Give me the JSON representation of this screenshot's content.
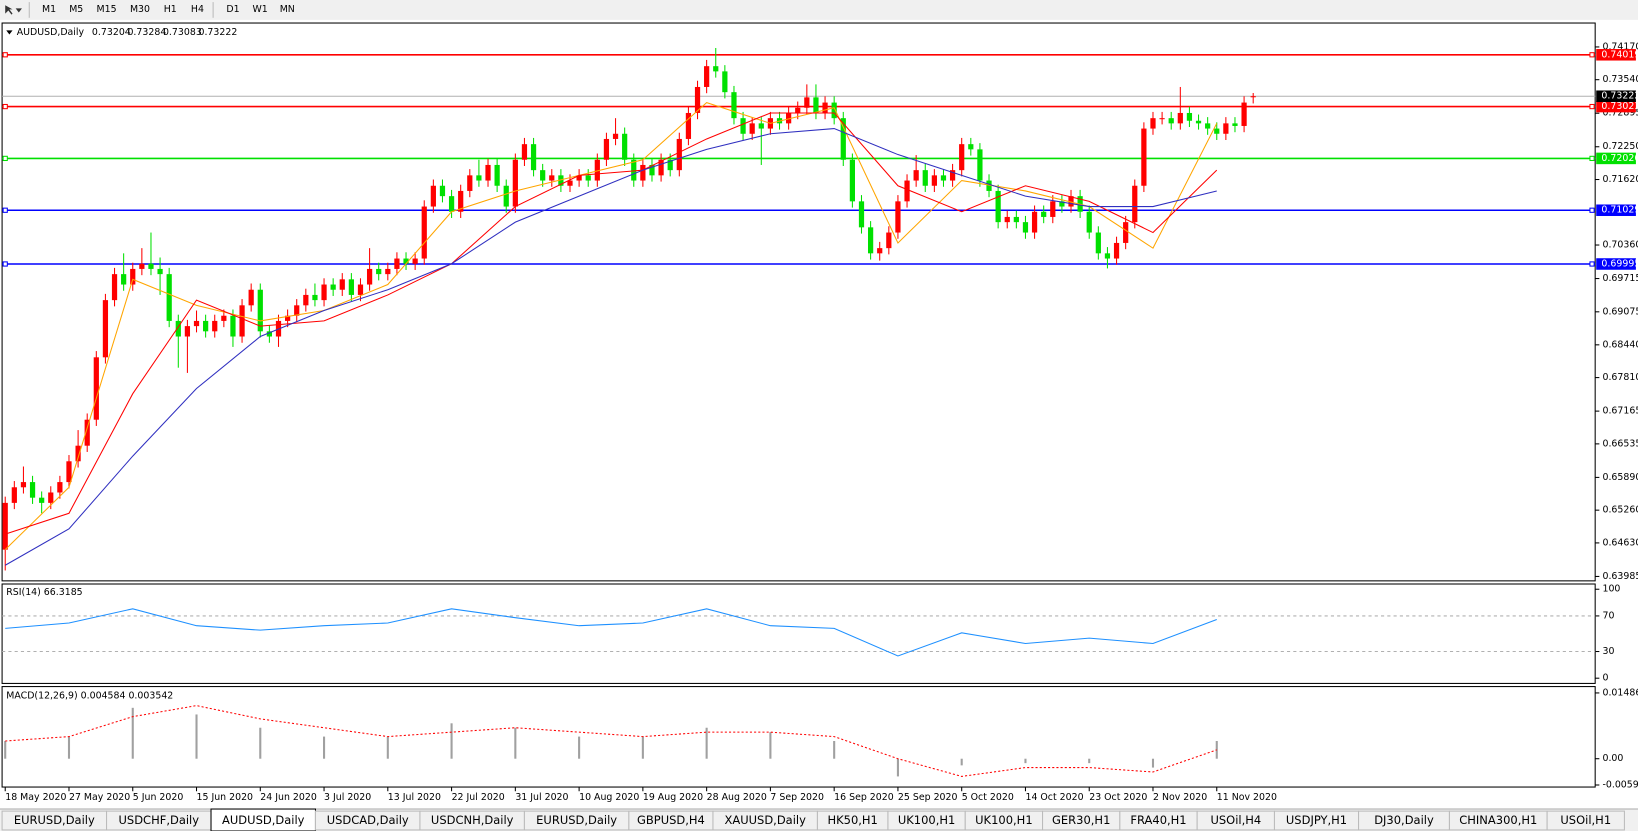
{
  "toolbar": {
    "timeframes": [
      "M1",
      "M5",
      "M15",
      "M30",
      "H1",
      "H4",
      "D1",
      "W1",
      "MN"
    ]
  },
  "tabs": [
    "EURUSD,Daily",
    "USDCHF,Daily",
    "AUDUSD,Daily",
    "USDCAD,Daily",
    "USDCNH,Daily",
    "EURUSD,Daily",
    "GBPUSD,H4",
    "XAUUSD,Daily",
    "HK50,H1",
    "UK100,H1",
    "UK100,H1",
    "GER30,H1",
    "FRA40,H1",
    "USOil,H4",
    "USDJPY,H1",
    "DJ30,Daily",
    "CHINA300,H1",
    "USOil,H1"
  ],
  "active_tab": 2,
  "chart_data": [
    {
      "type": "candlestick",
      "symbol": "AUDUSD,Daily",
      "categories": [
        "18 May 2020",
        null,
        null,
        null,
        null,
        null,
        null,
        "27 May 2020",
        null,
        null,
        null,
        null,
        null,
        null,
        "5 Jun 2020",
        null,
        null,
        null,
        null,
        null,
        null,
        "15 Jun 2020",
        null,
        null,
        null,
        null,
        null,
        null,
        "24 Jun 2020",
        null,
        null,
        null,
        null,
        null,
        null,
        "3 Jul 2020",
        null,
        null,
        null,
        null,
        null,
        null,
        "13 Jul 2020",
        null,
        null,
        null,
        null,
        null,
        null,
        "22 Jul 2020",
        null,
        null,
        null,
        null,
        null,
        null,
        "31 Jul 2020",
        null,
        null,
        null,
        null,
        null,
        null,
        "10 Aug 2020",
        null,
        null,
        null,
        null,
        null,
        null,
        "19 Aug 2020",
        null,
        null,
        null,
        null,
        null,
        null,
        "28 Aug 2020",
        null,
        null,
        null,
        null,
        null,
        null,
        "7 Sep 2020",
        null,
        null,
        null,
        null,
        null,
        null,
        "16 Sep 2020",
        null,
        null,
        null,
        null,
        null,
        null,
        "25 Sep 2020",
        null,
        null,
        null,
        null,
        null,
        null,
        "5 Oct 2020",
        null,
        null,
        null,
        null,
        null,
        null,
        "14 Oct 2020",
        null,
        null,
        null,
        null,
        null,
        null,
        "23 Oct 2020",
        null,
        null,
        null,
        null,
        null,
        null,
        "2 Nov 2020",
        null,
        null,
        null,
        null,
        null,
        null,
        "11 Nov 2020",
        null,
        null,
        null,
        null
      ],
      "open": [
        0.645,
        0.654,
        0.657,
        0.658,
        0.655,
        0.654,
        0.656,
        0.658,
        0.662,
        0.665,
        0.67,
        0.682,
        0.693,
        0.698,
        0.696,
        0.699,
        0.7,
        0.699,
        0.698,
        0.689,
        0.686,
        0.688,
        0.689,
        0.687,
        0.689,
        0.69,
        0.686,
        0.692,
        0.695,
        0.687,
        0.686,
        0.689,
        0.69,
        0.692,
        0.694,
        0.693,
        0.696,
        0.695,
        0.697,
        0.694,
        0.696,
        0.699,
        0.698,
        0.699,
        0.701,
        0.7,
        0.701,
        0.711,
        0.715,
        0.713,
        0.71,
        0.714,
        0.717,
        0.716,
        0.719,
        0.715,
        0.711,
        0.72,
        0.723,
        0.718,
        0.716,
        0.717,
        0.715,
        0.716,
        0.717,
        0.716,
        0.72,
        0.724,
        0.725,
        0.72,
        0.716,
        0.719,
        0.717,
        0.72,
        0.718,
        0.724,
        0.729,
        0.734,
        0.738,
        0.737,
        0.733,
        0.728,
        0.725,
        0.727,
        0.726,
        0.728,
        0.727,
        0.729,
        0.73,
        0.732,
        0.729,
        0.731,
        0.728,
        0.72,
        0.712,
        0.707,
        0.702,
        0.703,
        0.706,
        0.712,
        0.716,
        0.718,
        0.715,
        0.717,
        0.716,
        0.718,
        0.723,
        0.722,
        0.716,
        0.714,
        0.708,
        0.709,
        0.708,
        0.706,
        0.71,
        0.709,
        0.712,
        0.711,
        0.713,
        0.71,
        0.706,
        0.702,
        0.701,
        0.704,
        0.708,
        0.715,
        0.726,
        0.728,
        0.728,
        0.727,
        0.729,
        0.7275,
        0.727,
        0.726,
        0.725,
        0.727,
        0.7265,
        0.73204
      ],
      "high": [
        0.6552,
        0.6582,
        0.661,
        0.6592,
        0.6562,
        0.6572,
        0.6592,
        0.6632,
        0.668,
        0.6712,
        0.6832,
        0.6942,
        0.6992,
        0.702,
        0.7002,
        0.703,
        0.706,
        0.7012,
        0.6992,
        0.6902,
        0.6892,
        0.691,
        0.6902,
        0.6902,
        0.6912,
        0.6912,
        0.6932,
        0.6962,
        0.6962,
        0.6882,
        0.6902,
        0.6912,
        0.6932,
        0.6952,
        0.6962,
        0.6972,
        0.6972,
        0.6982,
        0.6982,
        0.6972,
        0.703,
        0.7002,
        0.7002,
        0.7022,
        0.7022,
        0.7022,
        0.7122,
        0.7162,
        0.7162,
        0.7142,
        0.7152,
        0.7182,
        0.72,
        0.7202,
        0.7202,
        0.7162,
        0.7212,
        0.7242,
        0.7242,
        0.7192,
        0.7182,
        0.7182,
        0.7172,
        0.7182,
        0.7182,
        0.7212,
        0.7252,
        0.728,
        0.7262,
        0.7212,
        0.7202,
        0.7202,
        0.7212,
        0.7212,
        0.7252,
        0.7302,
        0.7352,
        0.7392,
        0.7415,
        0.7382,
        0.7342,
        0.7292,
        0.7282,
        0.7282,
        0.7292,
        0.7292,
        0.7302,
        0.7312,
        0.7345,
        0.7345,
        0.7322,
        0.7322,
        0.7292,
        0.7212,
        0.7132,
        0.7082,
        0.7042,
        0.7072,
        0.7132,
        0.7172,
        0.7209,
        0.7192,
        0.7182,
        0.7182,
        0.7192,
        0.7242,
        0.7242,
        0.7232,
        0.7172,
        0.7152,
        0.7102,
        0.7102,
        0.7092,
        0.7112,
        0.7112,
        0.7132,
        0.7132,
        0.7142,
        0.7142,
        0.7112,
        0.7072,
        0.7032,
        0.7052,
        0.7092,
        0.7162,
        0.7272,
        0.7292,
        0.7292,
        0.7292,
        0.734,
        0.7302,
        0.7287,
        0.7282,
        0.7272,
        0.7282,
        0.7282,
        0.7322,
        0.73284
      ],
      "low": [
        0.641,
        0.6528,
        0.6558,
        0.6538,
        0.652,
        0.6528,
        0.6548,
        0.6568,
        0.6608,
        0.6638,
        0.6688,
        0.6808,
        0.6918,
        0.6948,
        0.6948,
        0.6978,
        0.6978,
        0.694,
        0.6878,
        0.68,
        0.679,
        0.6868,
        0.6858,
        0.6858,
        0.6878,
        0.684,
        0.6848,
        0.6908,
        0.6858,
        0.6848,
        0.684,
        0.6878,
        0.6888,
        0.6908,
        0.6918,
        0.6918,
        0.6938,
        0.6938,
        0.6928,
        0.6928,
        0.6948,
        0.6968,
        0.6968,
        0.6978,
        0.6988,
        0.6988,
        0.6998,
        0.7098,
        0.7118,
        0.7088,
        0.7088,
        0.7128,
        0.7148,
        0.7148,
        0.7138,
        0.7098,
        0.7098,
        0.7188,
        0.7168,
        0.7148,
        0.7148,
        0.7138,
        0.7138,
        0.7148,
        0.7148,
        0.7148,
        0.7188,
        0.7228,
        0.7188,
        0.7148,
        0.7148,
        0.7158,
        0.7158,
        0.7168,
        0.7168,
        0.7228,
        0.7278,
        0.7328,
        0.7358,
        0.7318,
        0.7268,
        0.7238,
        0.7238,
        0.719,
        0.7248,
        0.7258,
        0.7258,
        0.7278,
        0.7288,
        0.7278,
        0.7278,
        0.7268,
        0.7188,
        0.7108,
        0.7058,
        0.7008,
        0.7006,
        0.7018,
        0.7048,
        0.7108,
        0.7148,
        0.7138,
        0.7138,
        0.7148,
        0.7148,
        0.7168,
        0.7208,
        0.7148,
        0.7128,
        0.7068,
        0.7068,
        0.7068,
        0.7048,
        0.7048,
        0.7078,
        0.7078,
        0.7098,
        0.7098,
        0.7088,
        0.7048,
        0.7008,
        0.6991,
        0.6998,
        0.7028,
        0.7068,
        0.7138,
        0.7248,
        0.7268,
        0.7258,
        0.7258,
        0.7263,
        0.7258,
        0.7248,
        0.7238,
        0.7238,
        0.7253,
        0.7253,
        0.73083
      ],
      "close": [
        0.654,
        0.657,
        0.658,
        0.655,
        0.654,
        0.656,
        0.658,
        0.662,
        0.665,
        0.67,
        0.682,
        0.693,
        0.698,
        0.696,
        0.699,
        0.7,
        0.699,
        0.698,
        0.689,
        0.686,
        0.688,
        0.689,
        0.687,
        0.689,
        0.69,
        0.686,
        0.692,
        0.695,
        0.687,
        0.686,
        0.689,
        0.69,
        0.692,
        0.694,
        0.693,
        0.696,
        0.695,
        0.697,
        0.694,
        0.696,
        0.699,
        0.698,
        0.699,
        0.701,
        0.7,
        0.701,
        0.711,
        0.715,
        0.713,
        0.71,
        0.714,
        0.717,
        0.716,
        0.719,
        0.715,
        0.711,
        0.72,
        0.723,
        0.718,
        0.716,
        0.717,
        0.715,
        0.716,
        0.717,
        0.716,
        0.72,
        0.724,
        0.725,
        0.72,
        0.716,
        0.719,
        0.717,
        0.72,
        0.718,
        0.724,
        0.729,
        0.734,
        0.738,
        0.737,
        0.733,
        0.728,
        0.725,
        0.727,
        0.726,
        0.728,
        0.727,
        0.729,
        0.73,
        0.732,
        0.729,
        0.731,
        0.728,
        0.72,
        0.712,
        0.707,
        0.702,
        0.703,
        0.706,
        0.712,
        0.716,
        0.718,
        0.715,
        0.717,
        0.716,
        0.718,
        0.723,
        0.722,
        0.716,
        0.714,
        0.708,
        0.709,
        0.708,
        0.706,
        0.71,
        0.709,
        0.712,
        0.711,
        0.713,
        0.71,
        0.706,
        0.702,
        0.701,
        0.704,
        0.708,
        0.715,
        0.726,
        0.728,
        0.728,
        0.727,
        0.729,
        0.7275,
        0.727,
        0.726,
        0.725,
        0.727,
        0.7265,
        0.731,
        0.73222
      ],
      "up_color": "#ff0000",
      "down_color": "#00e000",
      "series": [
        {
          "color": "#ffa500",
          "x": [
            "18 May 2020",
            "27 May 2020",
            "5 Jun 2020",
            "15 Jun 2020",
            "24 Jun 2020",
            "3 Jul 2020",
            "13 Jul 2020",
            "22 Jul 2020",
            "31 Jul 2020",
            "10 Aug 2020",
            "19 Aug 2020",
            "28 Aug 2020",
            "7 Sep 2020",
            "16 Sep 2020",
            "25 Sep 2020",
            "5 Oct 2020",
            "14 Oct 2020",
            "23 Oct 2020",
            "2 Nov 2020",
            "11 Nov 2020"
          ],
          "values": [
            0.645,
            0.657,
            0.697,
            0.692,
            0.689,
            0.691,
            0.696,
            0.71,
            0.714,
            0.717,
            0.72,
            0.731,
            0.727,
            0.73,
            0.704,
            0.716,
            0.714,
            0.711,
            0.703,
            0.727
          ]
        },
        {
          "color": "#ff0000",
          "x": [
            "18 May 2020",
            "27 May 2020",
            "5 Jun 2020",
            "15 Jun 2020",
            "24 Jun 2020",
            "3 Jul 2020",
            "13 Jul 2020",
            "22 Jul 2020",
            "31 Jul 2020",
            "10 Aug 2020",
            "19 Aug 2020",
            "28 Aug 2020",
            "7 Sep 2020",
            "16 Sep 2020",
            "25 Sep 2020",
            "5 Oct 2020",
            "14 Oct 2020",
            "23 Oct 2020",
            "2 Nov 2020",
            "11 Nov 2020"
          ],
          "values": [
            0.648,
            0.652,
            0.675,
            0.693,
            0.688,
            0.689,
            0.694,
            0.7,
            0.711,
            0.717,
            0.718,
            0.724,
            0.729,
            0.729,
            0.715,
            0.71,
            0.715,
            0.712,
            0.706,
            0.718
          ]
        },
        {
          "color": "#3030c0",
          "x": [
            "18 May 2020",
            "27 May 2020",
            "5 Jun 2020",
            "15 Jun 2020",
            "24 Jun 2020",
            "3 Jul 2020",
            "13 Jul 2020",
            "22 Jul 2020",
            "31 Jul 2020",
            "10 Aug 2020",
            "19 Aug 2020",
            "28 Aug 2020",
            "7 Sep 2020",
            "16 Sep 2020",
            "25 Sep 2020",
            "5 Oct 2020",
            "14 Oct 2020",
            "23 Oct 2020",
            "2 Nov 2020",
            "11 Nov 2020"
          ],
          "values": [
            0.642,
            0.649,
            0.663,
            0.676,
            0.686,
            0.691,
            0.695,
            0.7,
            0.708,
            0.713,
            0.718,
            0.722,
            0.725,
            0.726,
            0.721,
            0.717,
            0.713,
            0.711,
            0.711,
            0.714
          ]
        }
      ],
      "levels": [
        {
          "value": 0.74019,
          "color": "#ff0000"
        },
        {
          "value": 0.73023,
          "color": "#ff0000"
        },
        {
          "value": 0.72026,
          "color": "#00e000"
        },
        {
          "value": 0.71029,
          "color": "#0000ff"
        },
        {
          "value": 0.69995,
          "color": "#0000ff"
        }
      ],
      "ylim": [
        0.639,
        0.7463
      ],
      "yticks": [
        {
          "value": 0.7417,
          "label": "0.74170"
        },
        {
          "value": 0.7354,
          "label": "0.73540"
        },
        0.72895,
        {
          "value": 0.7225,
          "label": "0.72250"
        },
        {
          "value": 0.7162,
          "label": "0.71620"
        },
        {
          "value": 0.7036,
          "label": "0.70360"
        },
        0.69715,
        0.69075,
        {
          "value": 0.6844,
          "label": "0.68440"
        },
        {
          "value": 0.6781,
          "label": "0.67810"
        },
        0.67165,
        0.66535,
        {
          "value": 0.6589,
          "label": "0.65890"
        },
        {
          "value": 0.6526,
          "label": "0.65260"
        },
        {
          "value": 0.6463,
          "label": "0.64630"
        },
        0.63985
      ]
    },
    {
      "type": "line",
      "title": "RSI(14) 66.3185",
      "color": "#1e90ff",
      "x": [
        "18 May 2020",
        "27 May 2020",
        "5 Jun 2020",
        "15 Jun 2020",
        "24 Jun 2020",
        "3 Jul 2020",
        "13 Jul 2020",
        "22 Jul 2020",
        "31 Jul 2020",
        "10 Aug 2020",
        "19 Aug 2020",
        "28 Aug 2020",
        "7 Sep 2020",
        "16 Sep 2020",
        "25 Sep 2020",
        "5 Oct 2020",
        "14 Oct 2020",
        "23 Oct 2020",
        "2 Nov 2020",
        "11 Nov 2020"
      ],
      "values": [
        56,
        62,
        78,
        59,
        54,
        59,
        62,
        78,
        68,
        59,
        62,
        78,
        59,
        56,
        25,
        51,
        39,
        45,
        39,
        66
      ],
      "ylim": [
        0,
        100
      ],
      "yticks": [
        0,
        30,
        70,
        100
      ]
    },
    {
      "type": "macd",
      "title": "MACD(12,26,9) 0.004584 0.003542",
      "histogram_color": "#a0a0a0",
      "signal_color": "#ff0000",
      "x": [
        "18 May 2020",
        "27 May 2020",
        "5 Jun 2020",
        "15 Jun 2020",
        "24 Jun 2020",
        "3 Jul 2020",
        "13 Jul 2020",
        "22 Jul 2020",
        "31 Jul 2020",
        "10 Aug 2020",
        "19 Aug 2020",
        "28 Aug 2020",
        "7 Sep 2020",
        "16 Sep 2020",
        "25 Sep 2020",
        "5 Oct 2020",
        "14 Oct 2020",
        "23 Oct 2020",
        "2 Nov 2020",
        "11 Nov 2020"
      ],
      "histogram": [
        0.004,
        0.005,
        0.0115,
        0.01,
        0.007,
        0.005,
        0.005,
        0.008,
        0.007,
        0.005,
        0.005,
        0.007,
        0.006,
        0.004,
        -0.004,
        -0.0015,
        -0.001,
        -0.001,
        -0.002,
        0.004
      ],
      "signal": [
        0.004,
        0.005,
        0.0095,
        0.012,
        0.009,
        0.007,
        0.005,
        0.006,
        0.007,
        0.006,
        0.005,
        0.006,
        0.006,
        0.005,
        0.0,
        -0.004,
        -0.002,
        -0.002,
        -0.003,
        0.002
      ],
      "ylim": [
        -0.0064,
        0.0163
      ],
      "yticks": [
        {
          "value": 0,
          "label": "0.00"
        },
        0.014861,
        -0.005938
      ]
    }
  ]
}
